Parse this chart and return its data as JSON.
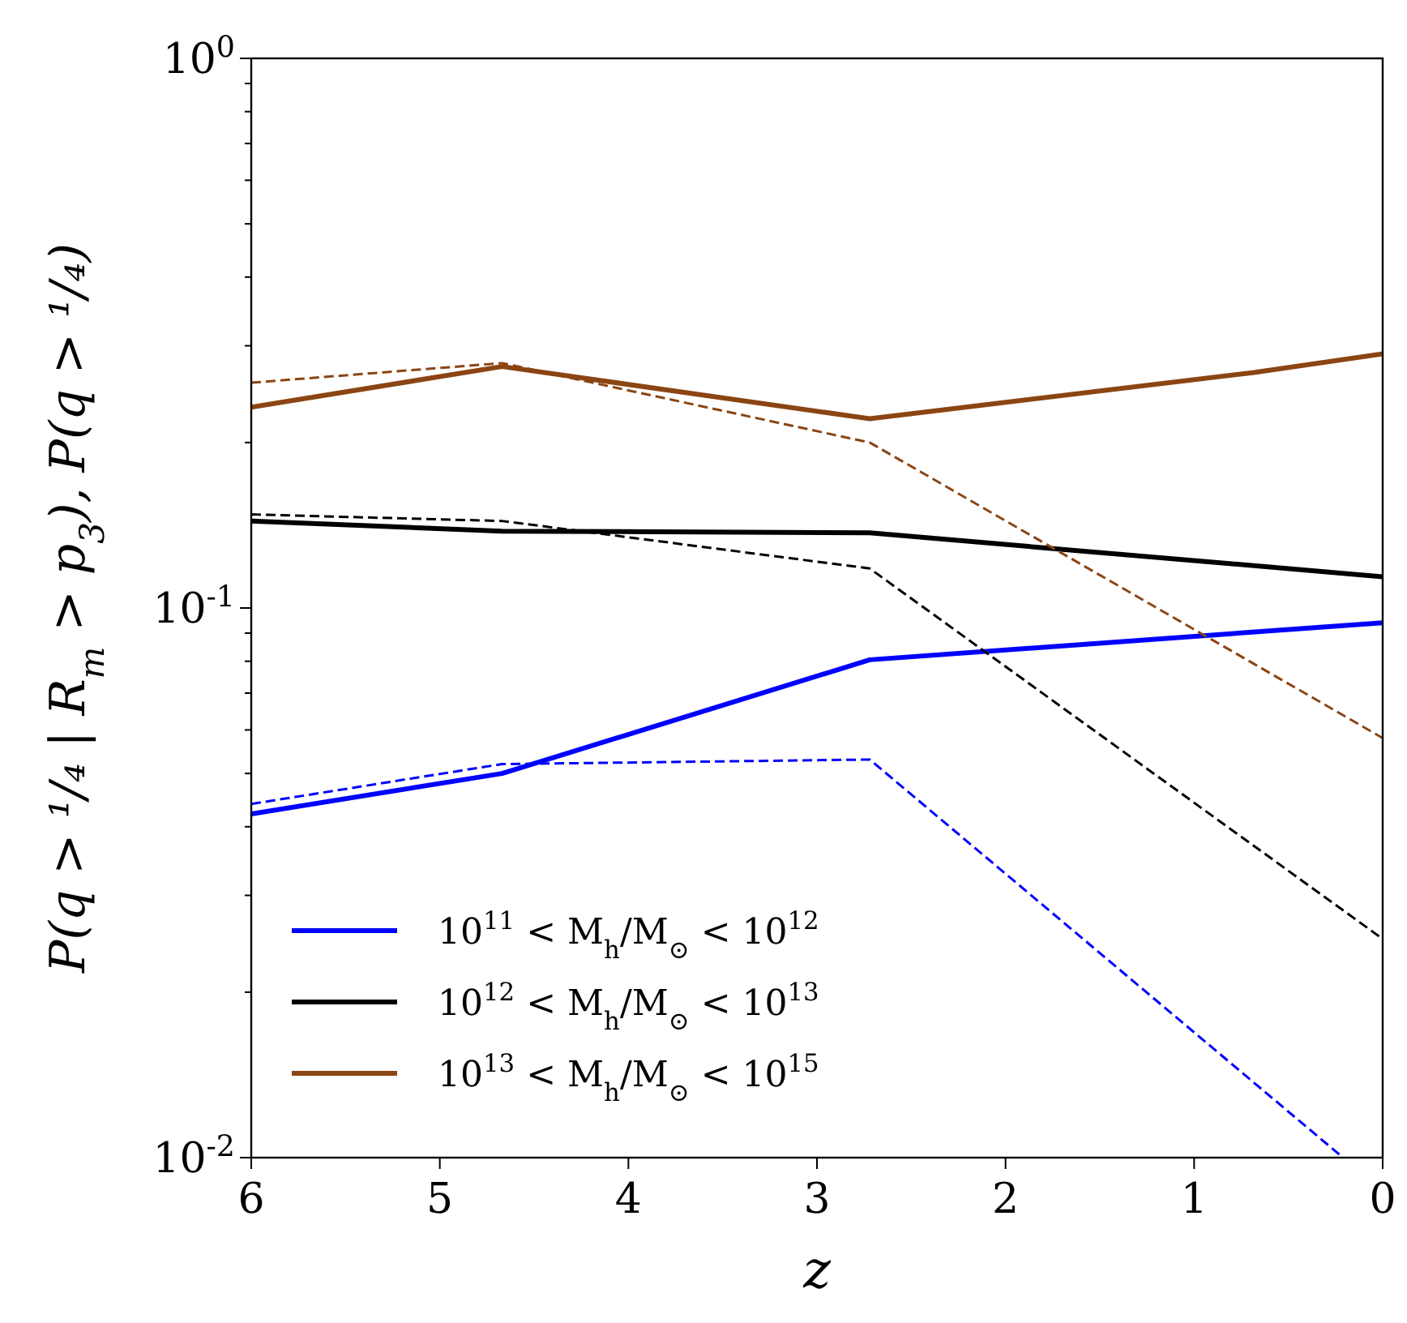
{
  "chart_data": {
    "type": "line",
    "xlabel": "z",
    "ylabel": "P(q > ¹/₄ | R$_{m}$ > p$_{3}$), P(q > ¹/₄)",
    "log": "y",
    "xlim": [
      6,
      0
    ],
    "xticks": [
      6,
      5,
      4,
      3,
      2,
      1,
      0
    ],
    "ylim": [
      0.01,
      1
    ],
    "yticks": [
      {
        "value": 0.01,
        "label": "10$^{-2}$"
      },
      {
        "value": 0.02,
        "label": null
      },
      {
        "value": 0.03,
        "label": null
      },
      {
        "value": 0.04,
        "label": null
      },
      {
        "value": 0.05,
        "label": null
      },
      {
        "value": 0.06,
        "label": null
      },
      {
        "value": 0.07,
        "label": null
      },
      {
        "value": 0.08,
        "label": null
      },
      {
        "value": 0.09,
        "label": null
      },
      {
        "value": 0.1,
        "label": "10$^{-1}$"
      },
      {
        "value": 0.2,
        "label": null
      },
      {
        "value": 0.3,
        "label": null
      },
      {
        "value": 0.4,
        "label": null
      },
      {
        "value": 0.5,
        "label": null
      },
      {
        "value": 0.6,
        "label": null
      },
      {
        "value": 0.7,
        "label": null
      },
      {
        "value": 0.8,
        "label": null
      },
      {
        "value": 0.9,
        "label": null
      },
      {
        "value": 1,
        "label": "10$^{0}$"
      }
    ],
    "grid": false,
    "legend": "bottom left",
    "series": [
      {
        "name": "10$^{11}$ < M$_{h}$/M$_{⊙}$ < 10$^{12}$",
        "color": "#0000ff",
        "x": [
          6,
          4.67,
          2.72,
          0
        ],
        "values": [
          0.0422,
          0.05,
          0.0805,
          0.094
        ]
      },
      {
        "name": "10$^{12}$ < M$_{h}$/M$_{⊙}$ < 10$^{13}$",
        "color": "#000000",
        "x": [
          6,
          4.67,
          2.72,
          0
        ],
        "values": [
          0.144,
          0.138,
          0.137,
          0.114
        ]
      },
      {
        "name": "10$^{13}$ < M$_{h}$/M$_{⊙}$ < 10$^{15}$",
        "color": "#8b4513",
        "x": [
          6,
          4.67,
          2.72,
          0.69,
          0
        ],
        "values": [
          0.232,
          0.275,
          0.221,
          0.268,
          0.29
        ]
      },
      {
        "color": "#0000ff",
        "line_style": "dashed",
        "x": [
          6,
          4.67,
          2.72,
          0.21
        ],
        "values": [
          0.044,
          0.052,
          0.053,
          0.01
        ]
      },
      {
        "color": "#000000",
        "line_style": "dashed",
        "x": [
          6,
          4.67,
          2.72,
          0
        ],
        "values": [
          0.148,
          0.144,
          0.118,
          0.025
        ]
      },
      {
        "color": "#8b4513",
        "line_style": "dashed",
        "x": [
          6,
          4.67,
          2.72,
          0
        ],
        "values": [
          0.257,
          0.279,
          0.2,
          0.058
        ]
      }
    ]
  }
}
